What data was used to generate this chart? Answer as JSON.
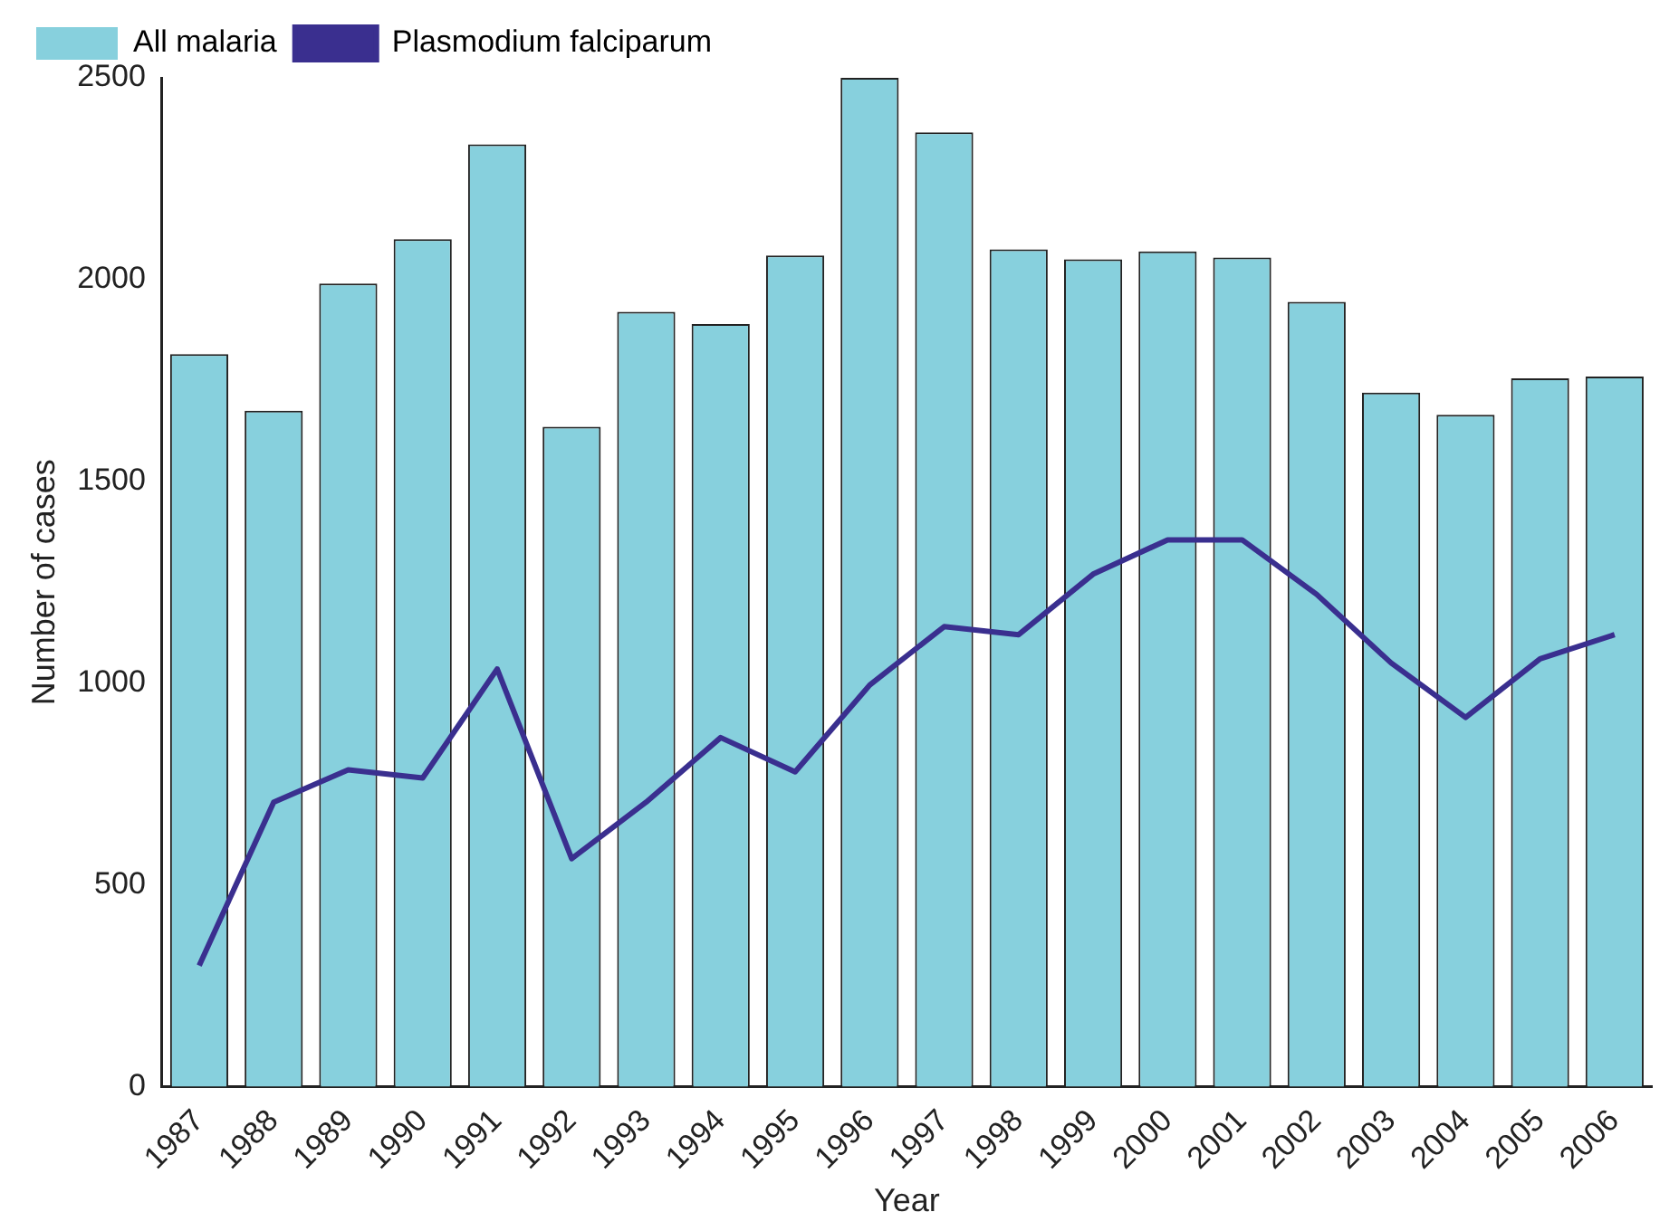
{
  "chart_data": {
    "type": "bar",
    "xlabel": "Year",
    "ylabel": "Number of cases",
    "categories": [
      "1987",
      "1988",
      "1989",
      "1990",
      "1991",
      "1992",
      "1993",
      "1994",
      "1995",
      "1996",
      "1997",
      "1998",
      "1999",
      "2000",
      "2001",
      "2002",
      "2003",
      "2004",
      "2005",
      "2006"
    ],
    "series": [
      {
        "name": "All malaria",
        "color": "#87d0dd",
        "values": [
          1815,
          1675,
          1990,
          2100,
          2335,
          1635,
          1920,
          1890,
          2060,
          2500,
          2365,
          2075,
          2050,
          2070,
          2055,
          1945,
          1720,
          1665,
          1755,
          1760
        ]
      },
      {
        "name": "Plasmodium falciparum",
        "type": "line",
        "color": "#3a2f8f",
        "values": [
          300,
          705,
          785,
          765,
          1035,
          565,
          705,
          865,
          780,
          995,
          1140,
          1120,
          1270,
          1355,
          1355,
          1220,
          1050,
          915,
          1060,
          1120
        ]
      }
    ],
    "ylim": [
      0,
      2500
    ],
    "yticks": [
      0,
      500,
      1000,
      1500,
      2000,
      2500
    ],
    "grid": false,
    "legend": "top left",
    "marker": "none"
  }
}
